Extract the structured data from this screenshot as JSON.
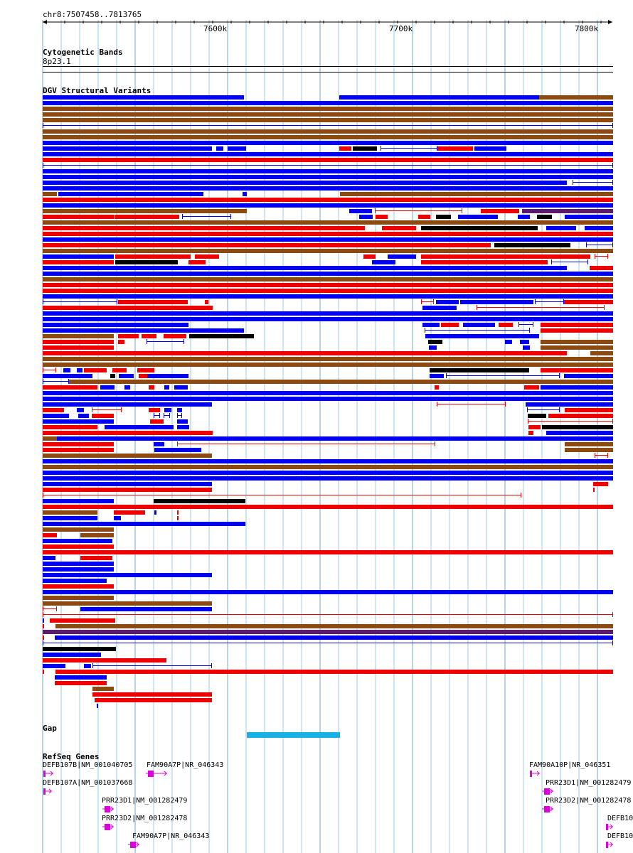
{
  "colors": {
    "grid": "#9ec7e8",
    "gain": "#0000ee",
    "loss": "#ee0000",
    "complex": "#8b4a12",
    "other": "#000000",
    "purple": "#5b1a6b",
    "gap": "#17b2e3",
    "gene": "#dd00dd"
  },
  "browser": {
    "position": "chr8:7507458..7813765",
    "ticks": [
      "7600k",
      "7700k",
      "7800k"
    ]
  },
  "tracks": {
    "cytoband_title": "Cytogenetic Bands",
    "cytoband_label": "8p23.1",
    "dgv_title": "DGV Structural Variants",
    "gap_title": "Gap",
    "refseq_title": "RefSeq Genes"
  },
  "genes": [
    {
      "label": "DEFB107B|NM_001040705"
    },
    {
      "label": "FAM90A7P|NR_046343"
    },
    {
      "label": "DEFB107A|NM_001037668"
    },
    {
      "label": "PRR23D1|NM_001282479"
    },
    {
      "label": "PRR23D2|NM_001282478"
    },
    {
      "label": "FAM90A7P|NR_046343"
    },
    {
      "label": "FAM90A10P|NR_046351"
    },
    {
      "label": "PRR23D1|NM_001282479"
    },
    {
      "label": "PRR23D2|NM_001282478"
    },
    {
      "label": "DEFB10"
    },
    {
      "label": "DEFB10"
    }
  ]
}
